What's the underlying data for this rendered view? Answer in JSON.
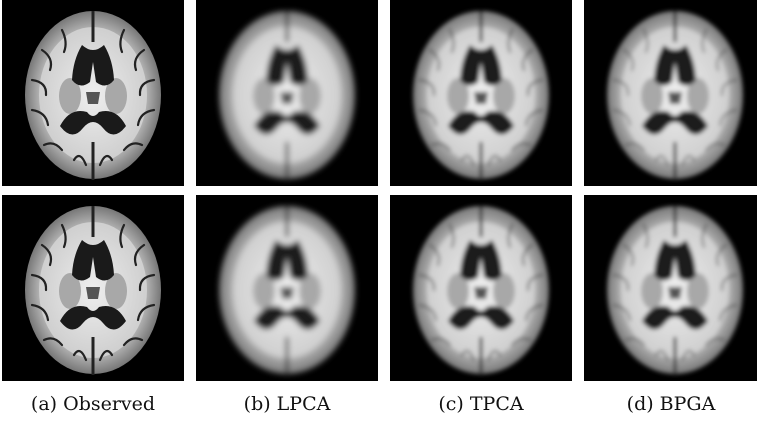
{
  "captions": [
    "(a) Observed",
    "(b) LPCA",
    "(c) TPCA",
    "(d) BPGA"
  ]
}
